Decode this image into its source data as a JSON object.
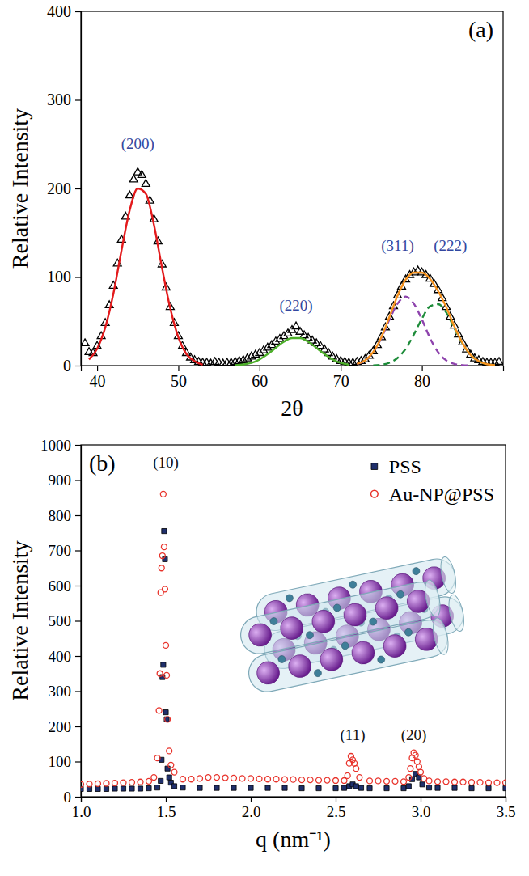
{
  "chart_data": [
    {
      "type": "scatter",
      "title": "(a)",
      "x_label": "2θ",
      "y_label": "Relative Intensity",
      "xlim": [
        38,
        90
      ],
      "ylim": [
        0,
        400
      ],
      "xticks": [
        40,
        50,
        60,
        70,
        80
      ],
      "yticks": [
        0,
        100,
        200,
        300,
        400
      ],
      "grid": false,
      "series": [
        {
          "type": "scatter",
          "marker": "triangle",
          "color": "#000000",
          "x": [
            38.5,
            39,
            39.5,
            40,
            40.5,
            41,
            41.5,
            42,
            42.5,
            43,
            43.5,
            44,
            44.5,
            45,
            45.5,
            46,
            46.5,
            47,
            47.5,
            48,
            48.5,
            49,
            49.5,
            50,
            50.5,
            51,
            51.5,
            52,
            52.5,
            53,
            53.5,
            54,
            54.5,
            55,
            55.5,
            56,
            56.5,
            57,
            57.5,
            58,
            58.5,
            59,
            59.5,
            60,
            60.5,
            61,
            61.5,
            62,
            62.5,
            63,
            63.5,
            64,
            64.5,
            65,
            65.5,
            66,
            66.5,
            67,
            67.5,
            68,
            68.5,
            69,
            69.5,
            70,
            70.5,
            71,
            71.5,
            72,
            72.5,
            73,
            73.5,
            74,
            74.5,
            75,
            75.5,
            76,
            76.5,
            77,
            77.5,
            78,
            78.5,
            79,
            79.5,
            80,
            80.5,
            81,
            81.5,
            82,
            82.5,
            83,
            83.5,
            84,
            84.5,
            85,
            85.5,
            86,
            86.5,
            87,
            87.5,
            88,
            88.5,
            89,
            89.5
          ],
          "values": [
            25,
            15,
            14,
            22,
            33,
            48,
            68,
            90,
            115,
            142,
            168,
            192,
            210,
            218,
            215,
            205,
            186,
            165,
            140,
            114,
            88,
            66,
            48,
            33,
            22,
            14,
            9,
            6,
            4,
            3,
            3,
            2,
            4,
            3,
            2,
            3,
            3,
            4,
            5,
            6,
            8,
            10,
            12,
            14,
            17,
            20,
            23,
            27,
            30,
            33,
            36,
            40,
            44,
            38,
            34,
            31,
            28,
            25,
            22,
            18,
            14,
            10,
            7,
            5,
            4,
            3,
            3,
            4,
            5,
            7,
            11,
            16,
            23,
            32,
            43,
            55,
            67,
            79,
            89,
            97,
            102,
            105,
            107,
            105,
            102,
            98,
            92,
            85,
            76,
            66,
            55,
            45,
            35,
            26,
            18,
            12,
            8,
            6,
            4,
            3,
            3,
            3,
            4
          ]
        },
        {
          "type": "line",
          "line_style": "solid",
          "color": "#e31a1c",
          "x": [
            39,
            40,
            41,
            42,
            43,
            44,
            45,
            46,
            47,
            48,
            49,
            50,
            51,
            52,
            53
          ],
          "values": [
            7,
            19,
            43,
            81,
            130,
            175,
            200,
            194,
            159,
            110,
            65,
            32,
            13,
            5,
            1
          ]
        },
        {
          "type": "line",
          "line_style": "solid",
          "color": "#4daf2a",
          "x": [
            57,
            58,
            59,
            60,
            61,
            62,
            63,
            64,
            65,
            66,
            67,
            68,
            69,
            70,
            71
          ],
          "values": [
            0.5,
            1.4,
            3,
            7,
            13,
            20,
            27,
            31,
            31,
            27,
            20,
            13,
            7,
            3,
            1
          ]
        },
        {
          "type": "line",
          "line_style": "dashed",
          "color": "#8e44ad",
          "x": [
            72,
            73,
            74,
            75,
            76,
            77,
            78,
            79,
            80,
            81,
            82,
            83,
            84,
            85,
            86
          ],
          "values": [
            1.9,
            5.9,
            15,
            31,
            52,
            70,
            78,
            70,
            52,
            31,
            15,
            5.9,
            1.9,
            0.5,
            0.1
          ]
        },
        {
          "type": "line",
          "line_style": "dashed",
          "color": "#1e8c3a",
          "x": [
            74,
            75,
            76,
            77,
            78,
            79,
            80,
            81,
            82,
            83,
            84,
            85,
            86,
            87,
            88,
            89
          ],
          "values": [
            0.3,
            1,
            3.2,
            8.7,
            19,
            35,
            53,
            67,
            69.4,
            60,
            42,
            25,
            12,
            5,
            1.6,
            0.5
          ]
        },
        {
          "type": "line",
          "line_style": "solid",
          "color": "#f7931e",
          "x": [
            72,
            73,
            74,
            75,
            76,
            77,
            78,
            79,
            80,
            81,
            82,
            83,
            84,
            85,
            86,
            87,
            88,
            89
          ],
          "values": [
            1.9,
            5.9,
            15.3,
            32,
            55,
            79,
            97,
            105,
            105,
            98,
            84,
            66,
            44,
            25.5,
            12,
            5,
            1.6,
            0.5
          ]
        }
      ],
      "annotations": [
        {
          "text": "(200)",
          "x": 45,
          "y": 245
        },
        {
          "text": "(220)",
          "x": 64.5,
          "y": 62
        },
        {
          "text": "(311)",
          "x": 77,
          "y": 130
        },
        {
          "text": "(222)",
          "x": 83.5,
          "y": 130
        }
      ]
    },
    {
      "type": "scatter",
      "title": "(b)",
      "x_label": "q (nm⁻¹)",
      "y_label": "Relative Intensity",
      "xlim": [
        1,
        3.5
      ],
      "ylim": [
        0,
        1000
      ],
      "xticks": [
        {
          "value": 1,
          "label": "1.0"
        },
        1.5,
        {
          "value": 2,
          "label": "2.0"
        },
        2.5,
        {
          "value": 3,
          "label": "3.0"
        },
        3.5
      ],
      "yticks": [
        0,
        100,
        200,
        300,
        400,
        500,
        600,
        700,
        800,
        900,
        1000
      ],
      "grid": false,
      "legend": "upper right",
      "series": [
        {
          "name": "PSS",
          "type": "scatter",
          "marker": "square",
          "color": "#1f2f6b",
          "x": [
            1,
            1.05,
            1.1,
            1.15,
            1.2,
            1.25,
            1.3,
            1.35,
            1.4,
            1.45,
            1.47,
            1.475,
            1.48,
            1.485,
            1.49,
            1.495,
            1.5,
            1.505,
            1.51,
            1.52,
            1.53,
            1.55,
            1.6,
            1.7,
            1.8,
            1.9,
            2,
            2.1,
            2.2,
            2.3,
            2.4,
            2.5,
            2.55,
            2.58,
            2.6,
            2.62,
            2.65,
            2.7,
            2.8,
            2.9,
            2.93,
            2.95,
            2.97,
            2.99,
            3.01,
            3.05,
            3.1,
            3.2,
            3.3,
            3.4,
            3.5
          ],
          "values": [
            22,
            22,
            22,
            22,
            23,
            23,
            23,
            23,
            24,
            26,
            45,
            105,
            340,
            375,
            755,
            675,
            240,
            220,
            80,
            55,
            40,
            30,
            26,
            25,
            25,
            25,
            25,
            25,
            25,
            24,
            24,
            24,
            25,
            30,
            35,
            30,
            25,
            24,
            24,
            24,
            30,
            50,
            65,
            55,
            35,
            26,
            25,
            25,
            24,
            24,
            24
          ]
        },
        {
          "name": "Au-NP@PSS",
          "type": "scatter",
          "marker": "circle",
          "color": "#e8322a",
          "x": [
            1,
            1.05,
            1.1,
            1.15,
            1.2,
            1.25,
            1.3,
            1.35,
            1.4,
            1.43,
            1.45,
            1.46,
            1.465,
            1.47,
            1.475,
            1.48,
            1.485,
            1.49,
            1.495,
            1.5,
            1.505,
            1.51,
            1.52,
            1.53,
            1.55,
            1.6,
            1.65,
            1.7,
            1.75,
            1.8,
            1.85,
            1.9,
            1.95,
            2,
            2.05,
            2.1,
            2.15,
            2.2,
            2.25,
            2.3,
            2.35,
            2.4,
            2.45,
            2.5,
            2.55,
            2.57,
            2.58,
            2.59,
            2.6,
            2.61,
            2.62,
            2.64,
            2.7,
            2.75,
            2.8,
            2.85,
            2.9,
            2.93,
            2.94,
            2.95,
            2.96,
            2.97,
            2.98,
            2.99,
            3,
            3.02,
            3.05,
            3.1,
            3.15,
            3.2,
            3.25,
            3.3,
            3.35,
            3.4,
            3.45,
            3.5
          ],
          "values": [
            35,
            36,
            37,
            38,
            39,
            40,
            41,
            42,
            44,
            55,
            110,
            245,
            350,
            580,
            650,
            685,
            860,
            710,
            590,
            430,
            345,
            220,
            130,
            90,
            70,
            50,
            50,
            52,
            55,
            55,
            54,
            53,
            52,
            52,
            51,
            50,
            50,
            49,
            49,
            48,
            48,
            47,
            47,
            46,
            46,
            60,
            95,
            115,
            105,
            95,
            80,
            55,
            45,
            45,
            44,
            44,
            43,
            55,
            80,
            110,
            125,
            118,
            100,
            85,
            70,
            52,
            45,
            43,
            43,
            42,
            42,
            41,
            41,
            40,
            40,
            40
          ]
        }
      ],
      "annotations": [
        {
          "text": "(10)",
          "x": 1.5,
          "y": 935
        },
        {
          "text": "(11)",
          "x": 2.6,
          "y": 160
        },
        {
          "text": "(20)",
          "x": 2.96,
          "y": 160
        }
      ]
    }
  ]
}
